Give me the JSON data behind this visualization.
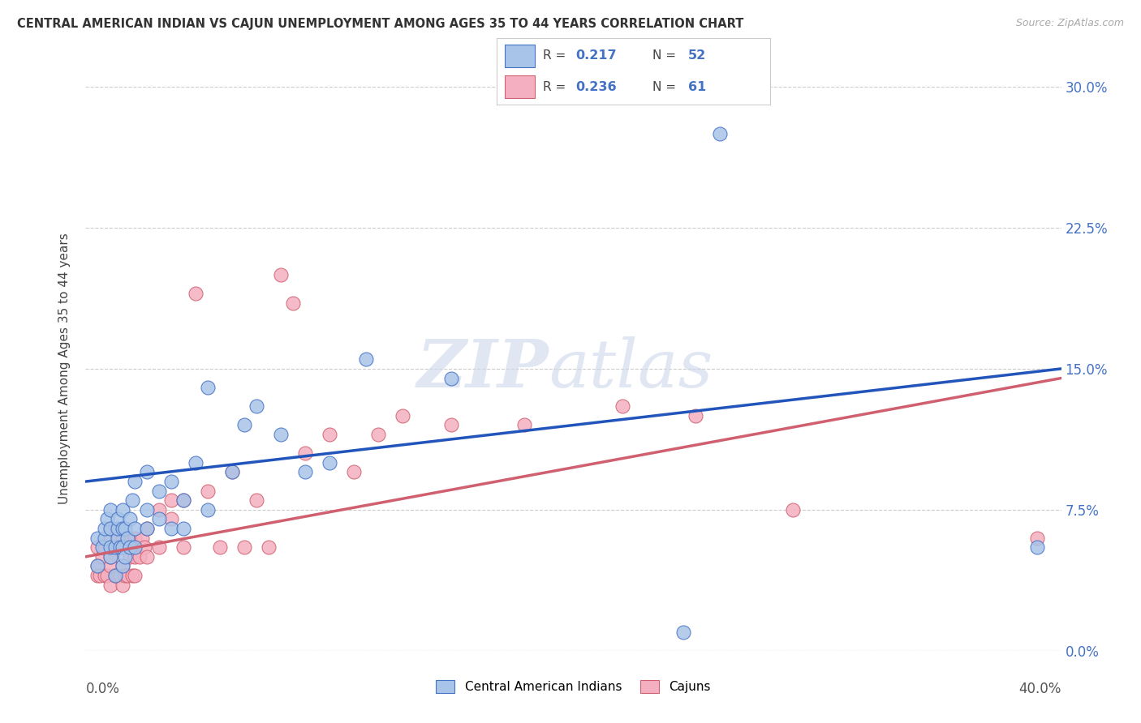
{
  "title": "CENTRAL AMERICAN INDIAN VS CAJUN UNEMPLOYMENT AMONG AGES 35 TO 44 YEARS CORRELATION CHART",
  "source": "Source: ZipAtlas.com",
  "ylabel": "Unemployment Among Ages 35 to 44 years",
  "legend_blue_label": "Central American Indians",
  "legend_pink_label": "Cajuns",
  "r_blue": "0.217",
  "n_blue": "52",
  "r_pink": "0.236",
  "n_pink": "61",
  "xmin": 0.0,
  "xmax": 0.4,
  "ymin": 0.0,
  "ymax": 0.3,
  "blue_scatter_color": "#a8c4e8",
  "blue_edge_color": "#4472c4",
  "pink_scatter_color": "#f4b0c0",
  "pink_edge_color": "#d06070",
  "blue_line_color": "#2255bb",
  "pink_line_color": "#d06070",
  "title_color": "#333333",
  "source_color": "#aaaaaa",
  "grid_color": "#cccccc",
  "right_axis_color": "#4472c4",
  "ytick_positions": [
    0.0,
    0.075,
    0.15,
    0.225,
    0.3
  ],
  "ytick_labels": [
    "0.0%",
    "7.5%",
    "15.0%",
    "22.5%",
    "30.0%"
  ],
  "blue_x": [
    0.005,
    0.005,
    0.007,
    0.008,
    0.008,
    0.009,
    0.01,
    0.01,
    0.01,
    0.01,
    0.012,
    0.012,
    0.013,
    0.013,
    0.013,
    0.014,
    0.015,
    0.015,
    0.015,
    0.015,
    0.016,
    0.016,
    0.017,
    0.018,
    0.018,
    0.019,
    0.02,
    0.02,
    0.02,
    0.025,
    0.025,
    0.025,
    0.03,
    0.03,
    0.035,
    0.035,
    0.04,
    0.04,
    0.045,
    0.05,
    0.05,
    0.06,
    0.065,
    0.07,
    0.08,
    0.09,
    0.1,
    0.115,
    0.15,
    0.245,
    0.26,
    0.39
  ],
  "blue_y": [
    0.045,
    0.06,
    0.055,
    0.06,
    0.065,
    0.07,
    0.05,
    0.055,
    0.065,
    0.075,
    0.04,
    0.055,
    0.06,
    0.065,
    0.07,
    0.055,
    0.045,
    0.055,
    0.065,
    0.075,
    0.05,
    0.065,
    0.06,
    0.055,
    0.07,
    0.08,
    0.055,
    0.065,
    0.09,
    0.065,
    0.075,
    0.095,
    0.07,
    0.085,
    0.065,
    0.09,
    0.065,
    0.08,
    0.1,
    0.075,
    0.14,
    0.095,
    0.12,
    0.13,
    0.115,
    0.095,
    0.1,
    0.155,
    0.145,
    0.01,
    0.275,
    0.055
  ],
  "pink_x": [
    0.005,
    0.005,
    0.005,
    0.006,
    0.007,
    0.008,
    0.008,
    0.009,
    0.01,
    0.01,
    0.01,
    0.01,
    0.01,
    0.012,
    0.013,
    0.013,
    0.014,
    0.015,
    0.015,
    0.015,
    0.016,
    0.017,
    0.017,
    0.018,
    0.018,
    0.019,
    0.02,
    0.02,
    0.02,
    0.02,
    0.022,
    0.023,
    0.024,
    0.025,
    0.025,
    0.03,
    0.03,
    0.035,
    0.035,
    0.04,
    0.04,
    0.045,
    0.05,
    0.055,
    0.06,
    0.065,
    0.07,
    0.075,
    0.08,
    0.085,
    0.09,
    0.1,
    0.11,
    0.12,
    0.13,
    0.15,
    0.18,
    0.22,
    0.25,
    0.29,
    0.39
  ],
  "pink_y": [
    0.04,
    0.045,
    0.055,
    0.04,
    0.05,
    0.04,
    0.055,
    0.04,
    0.035,
    0.045,
    0.05,
    0.06,
    0.065,
    0.04,
    0.04,
    0.055,
    0.04,
    0.035,
    0.045,
    0.06,
    0.04,
    0.04,
    0.055,
    0.05,
    0.06,
    0.04,
    0.04,
    0.05,
    0.055,
    0.06,
    0.05,
    0.06,
    0.055,
    0.05,
    0.065,
    0.055,
    0.075,
    0.07,
    0.08,
    0.055,
    0.08,
    0.19,
    0.085,
    0.055,
    0.095,
    0.055,
    0.08,
    0.055,
    0.2,
    0.185,
    0.105,
    0.115,
    0.095,
    0.115,
    0.125,
    0.12,
    0.12,
    0.13,
    0.125,
    0.075,
    0.06
  ],
  "blue_line_x0": 0.0,
  "blue_line_y0": 0.09,
  "blue_line_x1": 0.4,
  "blue_line_y1": 0.15,
  "pink_line_x0": 0.0,
  "pink_line_y0": 0.05,
  "pink_line_x1": 0.4,
  "pink_line_y1": 0.145
}
